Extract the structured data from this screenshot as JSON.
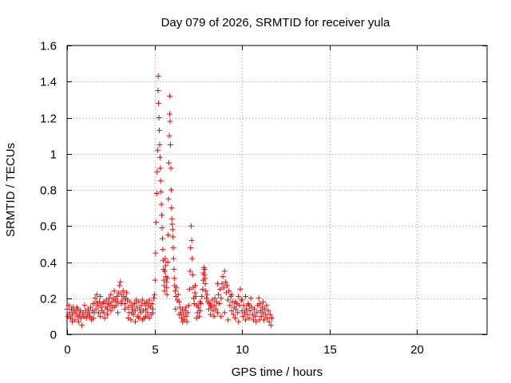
{
  "chart_data": {
    "type": "scatter",
    "title": "Day 079 of 2026, SRMTID for receiver yula",
    "xlabel": "GPS time / hours",
    "ylabel": "SRMTID / TECUs",
    "xlim": [
      0,
      24
    ],
    "ylim": [
      0,
      1.6
    ],
    "xticks": [
      0,
      5,
      10,
      15,
      20
    ],
    "yticks": [
      0,
      0.2,
      0.4,
      0.6,
      0.8,
      1,
      1.2,
      1.4,
      1.6
    ],
    "ytick_labels": [
      "0",
      "0.2",
      "0.4",
      "0.6",
      "0.8",
      "1",
      "1.2",
      "1.4",
      "1.6"
    ],
    "grid": true,
    "marker": "+",
    "color": "#ff0000",
    "series": [
      {
        "name": "SRMTID",
        "points": [
          [
            0.0,
            0.14
          ],
          [
            0.05,
            0.1
          ],
          [
            0.1,
            0.16
          ],
          [
            0.15,
            0.12
          ],
          [
            0.2,
            0.09
          ],
          [
            0.25,
            0.14
          ],
          [
            0.3,
            0.11
          ],
          [
            0.35,
            0.15
          ],
          [
            0.4,
            0.13
          ],
          [
            0.45,
            0.08
          ],
          [
            0.5,
            0.12
          ],
          [
            0.55,
            0.15
          ],
          [
            0.6,
            0.1
          ],
          [
            0.65,
            0.07
          ],
          [
            0.7,
            0.11
          ],
          [
            0.75,
            0.13
          ],
          [
            0.8,
            0.09
          ],
          [
            0.85,
            0.05
          ],
          [
            0.9,
            0.12
          ],
          [
            0.95,
            0.1
          ],
          [
            1.0,
            0.16
          ],
          [
            1.05,
            0.13
          ],
          [
            1.1,
            0.09
          ],
          [
            1.15,
            0.11
          ],
          [
            1.2,
            0.14
          ],
          [
            1.25,
            0.12
          ],
          [
            1.3,
            0.1
          ],
          [
            1.35,
            0.15
          ],
          [
            1.4,
            0.08
          ],
          [
            1.45,
            0.13
          ],
          [
            1.5,
            0.17
          ],
          [
            1.55,
            0.12
          ],
          [
            1.6,
            0.2
          ],
          [
            1.65,
            0.14
          ],
          [
            1.7,
            0.22
          ],
          [
            1.75,
            0.16
          ],
          [
            1.8,
            0.12
          ],
          [
            1.85,
            0.18
          ],
          [
            1.9,
            0.1
          ],
          [
            1.95,
            0.15
          ],
          [
            2.0,
            0.13
          ],
          [
            2.05,
            0.17
          ],
          [
            2.1,
            0.12
          ],
          [
            2.15,
            0.09
          ],
          [
            2.2,
            0.15
          ],
          [
            2.25,
            0.19
          ],
          [
            2.3,
            0.14
          ],
          [
            2.35,
            0.17
          ],
          [
            2.4,
            0.2
          ],
          [
            2.45,
            0.16
          ],
          [
            2.5,
            0.22
          ],
          [
            2.55,
            0.18
          ],
          [
            2.6,
            0.15
          ],
          [
            2.65,
            0.2
          ],
          [
            2.7,
            0.24
          ],
          [
            2.75,
            0.19
          ],
          [
            2.8,
            0.16
          ],
          [
            2.85,
            0.21
          ],
          [
            2.9,
            0.18
          ],
          [
            2.95,
            0.23
          ],
          [
            3.0,
            0.27
          ],
          [
            3.05,
            0.29
          ],
          [
            3.1,
            0.22
          ],
          [
            3.15,
            0.19
          ],
          [
            3.2,
            0.24
          ],
          [
            3.25,
            0.21
          ],
          [
            3.3,
            0.17
          ],
          [
            3.35,
            0.2
          ],
          [
            3.4,
            0.23
          ],
          [
            3.45,
            0.19
          ],
          [
            3.5,
            0.15
          ],
          [
            3.55,
            0.12
          ],
          [
            3.6,
            0.18
          ],
          [
            3.65,
            0.08
          ],
          [
            3.7,
            0.16
          ],
          [
            3.75,
            0.14
          ],
          [
            3.8,
            0.11
          ],
          [
            3.85,
            0.17
          ],
          [
            3.9,
            0.13
          ],
          [
            3.95,
            0.19
          ],
          [
            4.0,
            0.15
          ],
          [
            4.05,
            0.1
          ],
          [
            4.1,
            0.18
          ],
          [
            4.15,
            0.14
          ],
          [
            4.2,
            0.12
          ],
          [
            4.25,
            0.16
          ],
          [
            4.3,
            0.19
          ],
          [
            4.35,
            0.13
          ],
          [
            4.4,
            0.09
          ],
          [
            4.45,
            0.17
          ],
          [
            4.5,
            0.14
          ],
          [
            4.55,
            0.18
          ],
          [
            4.6,
            0.12
          ],
          [
            4.65,
            0.16
          ],
          [
            4.7,
            0.19
          ],
          [
            4.75,
            0.15
          ],
          [
            4.8,
            0.11
          ],
          [
            4.85,
            0.17
          ],
          [
            4.9,
            0.14
          ],
          [
            4.95,
            0.2
          ],
          [
            3.1,
            0.17
          ],
          [
            3.3,
            0.14
          ],
          [
            3.5,
            0.09
          ],
          [
            3.7,
            0.12
          ],
          [
            3.9,
            0.07
          ],
          [
            4.1,
            0.09
          ],
          [
            4.3,
            0.08
          ],
          [
            4.5,
            0.1
          ],
          [
            4.7,
            0.09
          ],
          [
            4.9,
            0.12
          ],
          [
            2.1,
            0.18
          ],
          [
            2.3,
            0.11
          ],
          [
            2.5,
            0.13
          ],
          [
            2.7,
            0.15
          ],
          [
            2.9,
            0.12
          ],
          [
            1.9,
            0.21
          ],
          [
            1.7,
            0.18
          ],
          [
            1.5,
            0.09
          ],
          [
            0.6,
            0.14
          ],
          [
            0.3,
            0.07
          ],
          [
            5.0,
            0.22
          ],
          [
            5.03,
            0.3
          ],
          [
            5.06,
            0.45
          ],
          [
            5.09,
            0.62
          ],
          [
            5.12,
            0.78
          ],
          [
            5.15,
            0.9
          ],
          [
            5.18,
            1.02
          ],
          [
            5.2,
            1.35
          ],
          [
            5.21,
            1.43
          ],
          [
            5.23,
            1.28
          ],
          [
            5.25,
            1.2
          ],
          [
            5.27,
            1.13
          ],
          [
            5.29,
            1.05
          ],
          [
            5.31,
            0.98
          ],
          [
            5.33,
            0.92
          ],
          [
            5.35,
            0.85
          ],
          [
            5.37,
            0.79
          ],
          [
            5.39,
            0.72
          ],
          [
            5.41,
            0.66
          ],
          [
            5.43,
            0.59
          ],
          [
            5.45,
            0.53
          ],
          [
            5.47,
            0.47
          ],
          [
            5.49,
            0.41
          ],
          [
            5.51,
            0.36
          ],
          [
            5.53,
            0.3
          ],
          [
            5.55,
            0.27
          ],
          [
            5.57,
            0.24
          ],
          [
            5.59,
            0.35
          ],
          [
            5.61,
            0.42
          ],
          [
            5.63,
            0.38
          ],
          [
            5.65,
            0.32
          ],
          [
            5.67,
            0.29
          ],
          [
            5.69,
            0.26
          ],
          [
            5.71,
            0.22
          ],
          [
            5.73,
            0.31
          ],
          [
            5.75,
            0.4
          ],
          [
            5.78,
            0.55
          ],
          [
            5.8,
            0.75
          ],
          [
            5.82,
            0.95
          ],
          [
            5.84,
            1.1
          ],
          [
            5.86,
            1.22
          ],
          [
            5.87,
            1.32
          ],
          [
            5.89,
            1.18
          ],
          [
            5.91,
            1.05
          ],
          [
            5.93,
            0.92
          ],
          [
            5.95,
            0.8
          ],
          [
            5.97,
            0.7
          ],
          [
            5.99,
            0.64
          ],
          [
            6.01,
            0.61
          ],
          [
            6.03,
            0.58
          ],
          [
            6.05,
            0.54
          ],
          [
            6.07,
            0.48
          ],
          [
            6.09,
            0.42
          ],
          [
            6.11,
            0.36
          ],
          [
            6.13,
            0.31
          ],
          [
            6.15,
            0.27
          ],
          [
            6.18,
            0.24
          ],
          [
            6.21,
            0.21
          ],
          [
            6.25,
            0.26
          ],
          [
            6.3,
            0.19
          ],
          [
            6.35,
            0.22
          ],
          [
            6.4,
            0.18
          ],
          [
            6.45,
            0.15
          ],
          [
            6.5,
            0.12
          ],
          [
            6.55,
            0.09
          ],
          [
            6.6,
            0.14
          ],
          [
            6.65,
            0.11
          ],
          [
            6.7,
            0.08
          ],
          [
            6.75,
            0.13
          ],
          [
            6.8,
            0.1
          ],
          [
            6.85,
            0.07
          ],
          [
            6.9,
            0.12
          ],
          [
            6.95,
            0.16
          ],
          [
            7.0,
            0.25
          ],
          [
            7.03,
            0.35
          ],
          [
            7.06,
            0.48
          ],
          [
            7.09,
            0.6
          ],
          [
            7.12,
            0.52
          ],
          [
            7.15,
            0.42
          ],
          [
            7.18,
            0.33
          ],
          [
            7.21,
            0.26
          ],
          [
            7.24,
            0.2
          ],
          [
            7.27,
            0.17
          ],
          [
            7.3,
            0.23
          ],
          [
            7.33,
            0.27
          ],
          [
            7.36,
            0.21
          ],
          [
            7.4,
            0.16
          ],
          [
            7.45,
            0.12
          ],
          [
            7.5,
            0.15
          ],
          [
            7.55,
            0.1
          ],
          [
            7.6,
            0.13
          ],
          [
            7.65,
            0.17
          ],
          [
            7.7,
            0.21
          ],
          [
            7.75,
            0.25
          ],
          [
            7.78,
            0.3
          ],
          [
            7.8,
            0.34
          ],
          [
            7.82,
            0.37
          ],
          [
            7.84,
            0.33
          ],
          [
            7.86,
            0.36
          ],
          [
            7.88,
            0.31
          ],
          [
            7.9,
            0.28
          ],
          [
            7.93,
            0.24
          ],
          [
            7.96,
            0.2
          ],
          [
            8.0,
            0.22
          ],
          [
            8.05,
            0.18
          ],
          [
            8.1,
            0.14
          ],
          [
            8.15,
            0.17
          ],
          [
            8.2,
            0.11
          ],
          [
            8.25,
            0.15
          ],
          [
            8.3,
            0.19
          ],
          [
            8.35,
            0.13
          ],
          [
            8.4,
            0.16
          ],
          [
            8.45,
            0.2
          ],
          [
            8.5,
            0.14
          ],
          [
            8.55,
            0.18
          ],
          [
            8.6,
            0.12
          ],
          [
            8.65,
            0.22
          ],
          [
            8.7,
            0.17
          ],
          [
            8.75,
            0.25
          ],
          [
            8.8,
            0.2
          ],
          [
            8.85,
            0.28
          ],
          [
            8.9,
            0.32
          ],
          [
            8.95,
            0.26
          ],
          [
            9.0,
            0.35
          ],
          [
            9.05,
            0.29
          ],
          [
            9.1,
            0.23
          ],
          [
            9.15,
            0.27
          ],
          [
            9.2,
            0.19
          ],
          [
            9.25,
            0.24
          ],
          [
            9.3,
            0.16
          ],
          [
            9.35,
            0.21
          ],
          [
            9.4,
            0.13
          ],
          [
            9.45,
            0.18
          ],
          [
            9.5,
            0.11
          ],
          [
            9.55,
            0.15
          ],
          [
            9.6,
            0.09
          ],
          [
            9.65,
            0.14
          ],
          [
            9.7,
            0.17
          ],
          [
            9.75,
            0.12
          ],
          [
            9.8,
            0.21
          ],
          [
            9.85,
            0.16
          ],
          [
            9.9,
            0.25
          ],
          [
            9.95,
            0.19
          ],
          [
            10.0,
            0.13
          ],
          [
            10.05,
            0.1
          ],
          [
            10.1,
            0.16
          ],
          [
            10.15,
            0.12
          ],
          [
            10.2,
            0.08
          ],
          [
            10.25,
            0.14
          ],
          [
            10.3,
            0.11
          ],
          [
            10.35,
            0.17
          ],
          [
            10.4,
            0.09
          ],
          [
            10.45,
            0.13
          ],
          [
            10.5,
            0.2
          ],
          [
            10.55,
            0.15
          ],
          [
            10.6,
            0.11
          ],
          [
            10.65,
            0.08
          ],
          [
            10.7,
            0.14
          ],
          [
            10.75,
            0.1
          ],
          [
            10.8,
            0.07
          ],
          [
            10.85,
            0.12
          ],
          [
            10.9,
            0.16
          ],
          [
            10.95,
            0.2
          ],
          [
            11.0,
            0.17
          ],
          [
            11.05,
            0.13
          ],
          [
            11.1,
            0.1
          ],
          [
            11.15,
            0.15
          ],
          [
            11.2,
            0.12
          ],
          [
            11.25,
            0.08
          ],
          [
            11.3,
            0.14
          ],
          [
            11.35,
            0.11
          ],
          [
            11.4,
            0.16
          ],
          [
            11.45,
            0.09
          ],
          [
            11.5,
            0.13
          ],
          [
            11.55,
            0.07
          ],
          [
            11.6,
            0.11
          ],
          [
            11.65,
            0.05
          ],
          [
            11.7,
            0.09
          ],
          [
            8.6,
            0.28
          ],
          [
            8.8,
            0.1
          ],
          [
            9.0,
            0.12
          ],
          [
            9.2,
            0.08
          ],
          [
            9.4,
            0.22
          ],
          [
            9.6,
            0.18
          ],
          [
            9.8,
            0.07
          ],
          [
            10.0,
            0.19
          ],
          [
            10.2,
            0.21
          ],
          [
            10.4,
            0.16
          ],
          [
            6.2,
            0.14
          ],
          [
            6.4,
            0.11
          ],
          [
            6.6,
            0.07
          ],
          [
            6.8,
            0.15
          ],
          [
            7.4,
            0.09
          ],
          [
            7.6,
            0.18
          ],
          [
            8.2,
            0.16
          ],
          [
            8.4,
            0.1
          ],
          [
            11.0,
            0.08
          ],
          [
            11.2,
            0.18
          ]
        ]
      }
    ]
  }
}
